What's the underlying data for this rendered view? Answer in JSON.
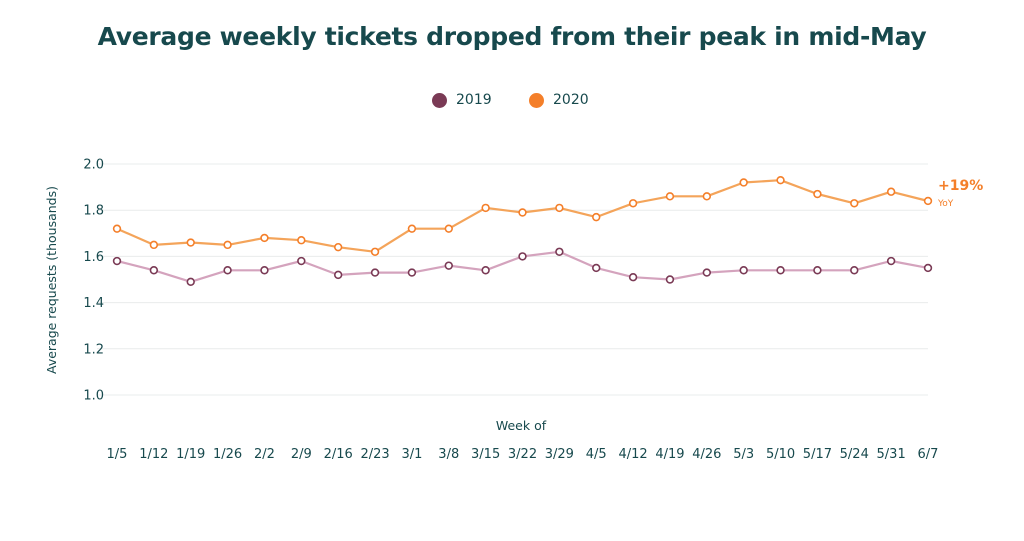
{
  "chart_data": {
    "type": "line",
    "title": "Average weekly tickets dropped from their peak in mid-May",
    "xlabel": "Week of",
    "ylabel": "Average requests (thousands)",
    "ylim": [
      1.0,
      2.0
    ],
    "yticks": [
      "1.0",
      "1.2",
      "1.4",
      "1.6",
      "1.8",
      "2.0"
    ],
    "grid": true,
    "legend_position": "top-center",
    "categories": [
      "1/5",
      "1/12",
      "1/19",
      "1/26",
      "2/2",
      "2/9",
      "2/16",
      "2/23",
      "3/1",
      "3/8",
      "3/15",
      "3/22",
      "3/29",
      "4/5",
      "4/12",
      "4/19",
      "4/26",
      "5/3",
      "5/10",
      "5/17",
      "5/24",
      "5/31",
      "6/7"
    ],
    "series": [
      {
        "name": "2019",
        "marker_color": "#7a3a55",
        "line_color": "#d4a3bd",
        "values": [
          1.58,
          1.54,
          1.49,
          1.54,
          1.54,
          1.58,
          1.52,
          1.53,
          1.53,
          1.56,
          1.54,
          1.6,
          1.62,
          1.55,
          1.51,
          1.5,
          1.53,
          1.54,
          1.54,
          1.54,
          1.54,
          1.58,
          1.55
        ]
      },
      {
        "name": "2020",
        "marker_color": "#f47f2a",
        "line_color": "#f4a45a",
        "values": [
          1.72,
          1.65,
          1.66,
          1.65,
          1.68,
          1.67,
          1.64,
          1.62,
          1.72,
          1.72,
          1.81,
          1.79,
          1.81,
          1.77,
          1.83,
          1.86,
          1.86,
          1.92,
          1.93,
          1.87,
          1.83,
          1.88,
          1.84
        ]
      }
    ],
    "annotation": {
      "value": "+19%",
      "label": "YoY"
    }
  }
}
